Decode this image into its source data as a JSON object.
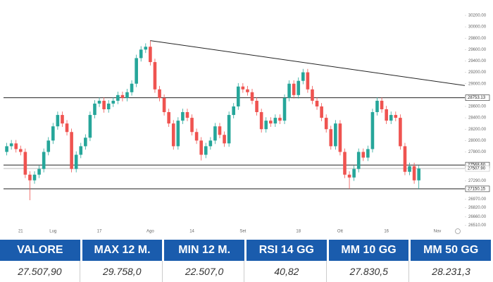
{
  "chart_data": {
    "type": "candlestick",
    "up_color": "#26a69a",
    "down_color": "#ef5350",
    "xlim": [
      -1,
      100
    ],
    "xticks": [
      {
        "value": 3,
        "label": "21"
      },
      {
        "value": 10,
        "label": "Lug"
      },
      {
        "value": 20,
        "label": "17"
      },
      {
        "value": 31,
        "label": "Ago"
      },
      {
        "value": 40,
        "label": "14"
      },
      {
        "value": 51,
        "label": "Set"
      },
      {
        "value": 63,
        "label": "18"
      },
      {
        "value": 72,
        "label": "Ott"
      },
      {
        "value": 82,
        "label": "16"
      },
      {
        "value": 93,
        "label": "Nov"
      }
    ],
    "ylim": [
      26380,
      30410
    ],
    "yticks": [
      {
        "value": 30200,
        "label": "30200.00"
      },
      {
        "value": 30000,
        "label": "30000.00"
      },
      {
        "value": 29800,
        "label": "29800.00"
      },
      {
        "value": 29600,
        "label": "29600.00"
      },
      {
        "value": 29400,
        "label": "29400.00"
      },
      {
        "value": 29200,
        "label": "29200.00"
      },
      {
        "value": 29000,
        "label": "29000.00"
      },
      {
        "value": 28600,
        "label": "28600.00"
      },
      {
        "value": 28400,
        "label": "28400.00"
      },
      {
        "value": 28200,
        "label": "28200.00"
      },
      {
        "value": 28000,
        "label": "28000.00"
      },
      {
        "value": 27800,
        "label": "27800.00"
      },
      {
        "value": 27290,
        "label": "27290.00"
      },
      {
        "value": 26970,
        "label": "26970.00"
      },
      {
        "value": 26820,
        "label": "26820.00"
      },
      {
        "value": 26660,
        "label": "26660.00"
      },
      {
        "value": 26510,
        "label": "26510.00"
      }
    ],
    "levels": [
      {
        "value": 28753.13,
        "label": "28753.13",
        "color": "#222222"
      },
      {
        "value": 27568.6,
        "label": "27568.60",
        "color": "#222222"
      },
      {
        "value": 27507.9,
        "label": "27507.90",
        "color": "#bbbbbb"
      },
      {
        "value": 27150.15,
        "label": "27150.15",
        "color": "#222222"
      }
    ],
    "trendline": {
      "x": [
        31,
        103
      ],
      "y": [
        29758,
        28920
      ],
      "color": "#222222"
    },
    "open": [
      27800,
      27900,
      27950,
      27850,
      27800,
      27400,
      27300,
      27400,
      27500,
      27800,
      28000,
      28250,
      28450,
      28300,
      28150,
      27500,
      27750,
      27900,
      28050,
      28450,
      28650,
      28700,
      28550,
      28650,
      28700,
      28800,
      28750,
      28850,
      29000,
      29450,
      29600,
      29650,
      29380,
      28900,
      28750,
      28500,
      28300,
      27900,
      28350,
      28500,
      28400,
      28150,
      28000,
      27750,
      27900,
      28000,
      28250,
      28100,
      27950,
      28450,
      28600,
      28950,
      28900,
      28850,
      28700,
      28500,
      28200,
      28350,
      28300,
      28400,
      28350,
      28750,
      29000,
      28800,
      29050,
      29200,
      28900,
      28700,
      28600,
      28400,
      28200,
      27900,
      28300,
      27800,
      27400,
      27350,
      27500,
      27800,
      27700,
      27850,
      28500,
      28700,
      28550,
      28350,
      28450,
      28400,
      27900,
      27450,
      27550,
      27300
    ],
    "high": [
      27960,
      28010,
      28010,
      27910,
      27860,
      27460,
      27460,
      27560,
      27860,
      28060,
      28310,
      28510,
      28510,
      28360,
      28210,
      27810,
      27960,
      28110,
      28510,
      28710,
      28760,
      28760,
      28710,
      28760,
      28860,
      28860,
      28910,
      29060,
      29510,
      29660,
      29710,
      29758,
      29440,
      28960,
      28810,
      28560,
      28360,
      28410,
      28560,
      28560,
      28460,
      28210,
      28060,
      27960,
      28060,
      28310,
      28310,
      28160,
      28510,
      28660,
      29010,
      29010,
      28960,
      28910,
      28760,
      28560,
      28410,
      28410,
      28460,
      28460,
      28810,
      29060,
      29060,
      29110,
      29260,
      29260,
      28960,
      28760,
      28660,
      28460,
      28260,
      28360,
      28360,
      27860,
      27460,
      27560,
      27860,
      27860,
      27910,
      28560,
      28760,
      28760,
      28610,
      28510,
      28510,
      28460,
      27960,
      27610,
      27610,
      27568
    ],
    "low": [
      27740,
      27840,
      27790,
      27740,
      27340,
      26950,
      27240,
      27340,
      27440,
      27740,
      27940,
      28190,
      28240,
      28090,
      27440,
      27440,
      27690,
      27840,
      27990,
      28390,
      28590,
      28490,
      28490,
      28590,
      28640,
      28690,
      28690,
      28790,
      28940,
      29390,
      29540,
      29320,
      28840,
      28690,
      28440,
      28240,
      27840,
      27840,
      28290,
      28340,
      28090,
      27940,
      27650,
      27690,
      27840,
      27940,
      28040,
      27890,
      27890,
      28390,
      28540,
      28840,
      28790,
      28640,
      28440,
      28140,
      28140,
      28240,
      28240,
      28290,
      28290,
      28690,
      28740,
      28740,
      28990,
      28840,
      28640,
      28540,
      28340,
      28140,
      27840,
      27840,
      27740,
      27340,
      27150,
      27290,
      27440,
      27640,
      27640,
      27790,
      28440,
      28490,
      28290,
      28290,
      28340,
      27840,
      27390,
      27390,
      27240,
      27150
    ],
    "close": [
      27900,
      27950,
      27850,
      27800,
      27400,
      27300,
      27400,
      27500,
      27800,
      28000,
      28250,
      28450,
      28300,
      28150,
      27500,
      27750,
      27900,
      28050,
      28450,
      28650,
      28700,
      28550,
      28650,
      28700,
      28800,
      28750,
      28850,
      29000,
      29450,
      29600,
      29650,
      29380,
      28900,
      28750,
      28500,
      28300,
      27900,
      28350,
      28500,
      28400,
      28150,
      28000,
      27750,
      27900,
      28000,
      28250,
      28100,
      27950,
      28450,
      28600,
      28950,
      28900,
      28850,
      28700,
      28500,
      28200,
      28350,
      28300,
      28400,
      28350,
      28750,
      29000,
      28800,
      29050,
      29200,
      28900,
      28700,
      28600,
      28400,
      28200,
      27900,
      28300,
      27800,
      27400,
      27350,
      27500,
      27800,
      27700,
      27850,
      28500,
      28700,
      28550,
      28350,
      28450,
      28400,
      27900,
      27450,
      27550,
      27300,
      27508
    ],
    "grid": false
  },
  "table": {
    "headers": [
      "VALORE",
      "MAX 12 M.",
      "MIN 12 M.",
      "RSI 14 GG",
      "MM 10 GG",
      "MM 50 GG"
    ],
    "values": [
      "27.507,90",
      "29.758,0",
      "22.507,0",
      "40,82",
      "27.830,5",
      "28.231,3"
    ]
  }
}
